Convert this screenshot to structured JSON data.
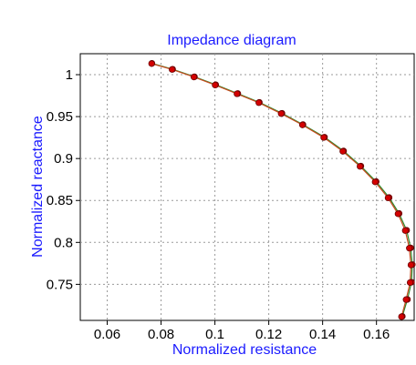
{
  "chart_data": {
    "type": "line",
    "title": "Impedance diagram",
    "xlabel": "Normalized resistance",
    "ylabel": "Normalized reactance",
    "xlim": [
      0.05,
      0.174
    ],
    "ylim": [
      0.707,
      1.025
    ],
    "xticks": [
      "0.06",
      "0.08",
      "0.1",
      "0.12",
      "0.14",
      "0.16"
    ],
    "xtick_values": [
      0.06,
      0.08,
      0.1,
      0.12,
      0.14,
      0.16
    ],
    "yticks": [
      "0.75",
      "0.8",
      "0.85",
      "0.9",
      "0.95",
      "1"
    ],
    "ytick_values": [
      0.75,
      0.8,
      0.85,
      0.9,
      0.95,
      1.0
    ],
    "grid": true,
    "colors": {
      "title": "#1a1aff",
      "axis_labels": "#1a1aff",
      "tick_labels": "#000000",
      "grid": "#9a9a9a",
      "curve_a": "#2e8b2e",
      "curve_b": "#c84a1e",
      "marker_fill": "#d40000",
      "marker_stroke": "#6a0000"
    },
    "series": [
      {
        "values": [
          [
            0.0766,
            1.0135
          ],
          [
            0.0843,
            1.0065
          ],
          [
            0.0924,
            0.9975
          ],
          [
            0.1003,
            0.988
          ],
          [
            0.1085,
            0.9775
          ],
          [
            0.1165,
            0.967
          ],
          [
            0.1249,
            0.954
          ],
          [
            0.1327,
            0.9405
          ],
          [
            0.1407,
            0.9255
          ],
          [
            0.1478,
            0.909
          ],
          [
            0.1542,
            0.891
          ],
          [
            0.1599,
            0.8725
          ],
          [
            0.1647,
            0.8535
          ],
          [
            0.1684,
            0.8345
          ],
          [
            0.1712,
            0.8145
          ],
          [
            0.1727,
            0.7935
          ],
          [
            0.1733,
            0.7735
          ],
          [
            0.173,
            0.7525
          ],
          [
            0.1715,
            0.732
          ],
          [
            0.1696,
            0.7118
          ]
        ]
      },
      {
        "values": [
          [
            0.0765,
            1.0132
          ],
          [
            0.0841,
            1.0062
          ],
          [
            0.0922,
            0.9972
          ],
          [
            0.1001,
            0.9876
          ],
          [
            0.1082,
            0.9772
          ],
          [
            0.1163,
            0.9666
          ],
          [
            0.1246,
            0.9536
          ],
          [
            0.1325,
            0.9401
          ],
          [
            0.1404,
            0.9251
          ],
          [
            0.1475,
            0.9086
          ],
          [
            0.1539,
            0.8906
          ],
          [
            0.1595,
            0.8721
          ],
          [
            0.1643,
            0.8531
          ],
          [
            0.168,
            0.8341
          ],
          [
            0.1707,
            0.8141
          ],
          [
            0.1722,
            0.7931
          ],
          [
            0.1728,
            0.7731
          ],
          [
            0.1725,
            0.7521
          ],
          [
            0.171,
            0.7318
          ],
          [
            0.1693,
            0.7114
          ]
        ]
      }
    ]
  }
}
